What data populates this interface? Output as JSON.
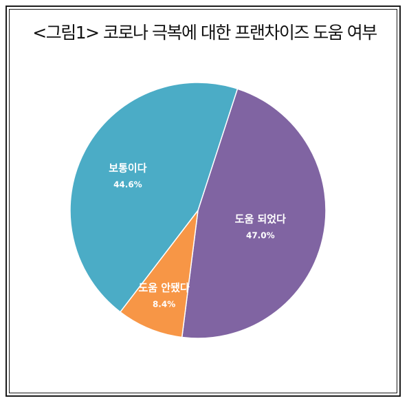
{
  "chart_data": {
    "type": "pie",
    "title": "<그림1> 코로나 극복에 대한 프랜차이즈 도움 여부",
    "slices": [
      {
        "label": "도움 되었다",
        "value": 47.0,
        "value_label": "47.0%",
        "color": "#8064a2"
      },
      {
        "label": "도움 안됐다",
        "value": 8.4,
        "value_label": "8.4%",
        "color": "#f79646"
      },
      {
        "label": "보통이다",
        "value": 44.6,
        "value_label": "44.6%",
        "color": "#4bacc6"
      }
    ],
    "start_angle_deg": 18,
    "direction": "clockwise",
    "legend": "none"
  }
}
